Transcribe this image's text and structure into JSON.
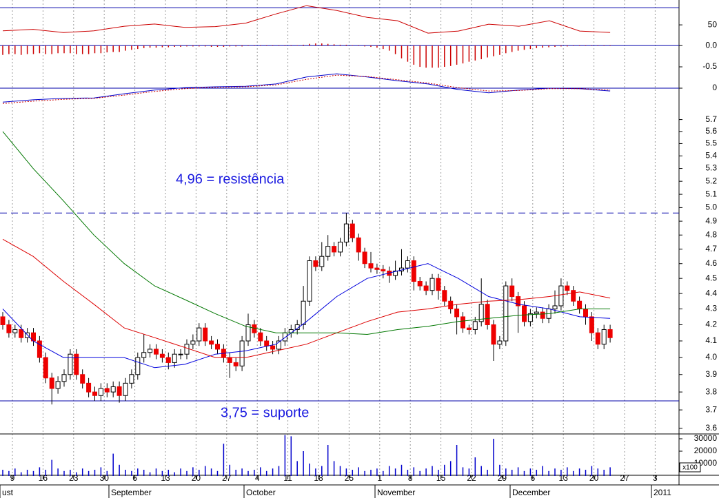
{
  "x_axis": {
    "ticks": [
      "9",
      "16",
      "23",
      "30",
      "6",
      "13",
      "20",
      "27",
      "4",
      "11",
      "18",
      "25",
      "1",
      "8",
      "15",
      "22",
      "29",
      "6",
      "13",
      "20",
      "27",
      "3"
    ],
    "months": [
      "ust",
      "September",
      "October",
      "November",
      "December",
      "2011"
    ]
  },
  "chart_data": [
    {
      "type": "line",
      "name": "rsi",
      "ylim": [
        26,
        79
      ],
      "yticks": [
        50
      ],
      "levels": [
        70
      ],
      "level_color": "#0000aa",
      "series": [
        {
          "color": "#cc0000",
          "values": [
            43,
            44.8,
            41,
            43,
            48.4,
            51,
            47,
            48,
            52,
            62.8,
            72.4,
            66.8,
            58.8,
            54.8,
            40.4,
            42.8,
            50.8,
            48.4,
            54.8,
            42.8,
            41.2
          ]
        }
      ]
    },
    {
      "type": "bar",
      "name": "macd-histogram",
      "ylim": [
        -0.71,
        0.1
      ],
      "yticks": [
        {
          "value": 0,
          "label": "0.0"
        },
        -0.5
      ],
      "levels": [
        0
      ],
      "level_color": "#0000aa",
      "color": "#cc0000",
      "values": [
        -0.22,
        -0.2,
        -0.2,
        -0.22,
        -0.2,
        -0.2,
        -0.18,
        -0.2,
        -0.2,
        -0.18,
        -0.18,
        -0.18,
        -0.2,
        -0.2,
        -0.2,
        -0.18,
        -0.18,
        -0.16,
        -0.15,
        -0.15,
        -0.12,
        -0.1,
        -0.08,
        -0.06,
        -0.05,
        -0.05,
        -0.04,
        -0.04,
        -0.03,
        -0.03,
        -0.02,
        -0.02,
        -0.02,
        -0.02,
        -0.03,
        -0.03,
        -0.03,
        -0.02,
        -0.02,
        -0.02,
        -0.01,
        -0.01,
        -0.01,
        -0.01,
        -0.01,
        -0.01,
        -0.01,
        -0.01,
        0.01,
        0.02,
        0.04,
        0.05,
        0.05,
        0.04,
        0.03,
        0.02,
        0.02,
        0.01,
        -0.01,
        -0.02,
        -0.03,
        -0.05,
        -0.08,
        -0.12,
        -0.2,
        -0.3,
        -0.38,
        -0.45,
        -0.5,
        -0.52,
        -0.52,
        -0.52,
        -0.5,
        -0.48,
        -0.45,
        -0.42,
        -0.38,
        -0.35,
        -0.32,
        -0.28,
        -0.25,
        -0.22,
        -0.18,
        -0.15,
        -0.12,
        -0.1,
        -0.08,
        -0.06,
        -0.05,
        -0.04,
        -0.03,
        -0.02,
        -0.02,
        -0.01,
        -0.01,
        -0.01,
        -0.01,
        -0.01,
        -0.01,
        -0.01
      ]
    },
    {
      "type": "line",
      "name": "macd",
      "ylim": [
        -0.4,
        0.4
      ],
      "yticks": [
        0
      ],
      "levels": [
        0
      ],
      "level_color": "#0000aa",
      "series": [
        {
          "color": "#0000cc",
          "values": [
            -0.3,
            -0.25,
            -0.22,
            -0.21,
            -0.12,
            -0.04,
            0.01,
            0.03,
            0.04,
            0.09,
            0.24,
            0.31,
            0.24,
            0.16,
            0.09,
            -0.03,
            -0.1,
            -0.04,
            0,
            -0.01,
            -0.06
          ]
        },
        {
          "color": "#cc0000",
          "dashed": true,
          "values": [
            -0.33,
            -0.28,
            -0.24,
            -0.22,
            -0.15,
            -0.07,
            -0.01,
            0.02,
            0.03,
            0.07,
            0.19,
            0.28,
            0.25,
            0.18,
            0.11,
            0.01,
            -0.06,
            -0.05,
            -0.01,
            -0.01,
            -0.04
          ]
        }
      ]
    },
    {
      "type": "candlestick",
      "name": "price",
      "log": true,
      "ylim": [
        3.57,
        5.78
      ],
      "yticks": [
        3.6,
        3.7,
        3.8,
        3.9,
        {
          "value": 4.0,
          "label": "4.0"
        },
        4.1,
        4.2,
        4.3,
        4.4,
        4.5,
        4.6,
        4.7,
        4.8,
        4.9,
        {
          "value": 5.0,
          "label": "5.0"
        },
        5.1,
        5.2,
        5.3,
        5.4,
        5.5,
        5.6,
        5.7
      ],
      "up_color": "#ffffff",
      "down_color": "#ee0000",
      "annotations": [
        {
          "text": "4,96 = resistência",
          "value": 4.96,
          "dashed": true
        },
        {
          "text": "3,75 = suporte",
          "value": 3.75
        }
      ],
      "level_color": "#0000aa",
      "ohlc": [
        [
          4.25,
          4.28,
          4.17,
          4.2
        ],
        [
          4.2,
          4.23,
          4.12,
          4.15
        ],
        [
          4.15,
          4.2,
          4.12,
          4.17
        ],
        [
          4.17,
          4.2,
          4.09,
          4.12
        ],
        [
          4.12,
          4.18,
          4.09,
          4.15
        ],
        [
          4.15,
          4.18,
          4.07,
          4.1
        ],
        [
          4.1,
          4.13,
          3.97,
          4
        ],
        [
          4,
          4.03,
          3.85,
          3.88
        ],
        [
          3.88,
          3.91,
          3.73,
          3.82
        ],
        [
          3.82,
          3.89,
          3.79,
          3.86
        ],
        [
          3.86,
          3.93,
          3.83,
          3.9
        ],
        [
          3.9,
          4.05,
          3.87,
          4.02
        ],
        [
          4.02,
          4.05,
          3.87,
          3.9
        ],
        [
          3.9,
          3.93,
          3.82,
          3.85
        ],
        [
          3.85,
          3.88,
          3.77,
          3.8
        ],
        [
          3.8,
          3.83,
          3.75,
          3.78
        ],
        [
          3.78,
          3.85,
          3.75,
          3.82
        ],
        [
          3.82,
          3.85,
          3.77,
          3.8
        ],
        [
          3.8,
          3.86,
          3.77,
          3.83
        ],
        [
          3.83,
          3.86,
          3.74,
          3.78
        ],
        [
          3.78,
          3.88,
          3.75,
          3.85
        ],
        [
          3.85,
          3.93,
          3.82,
          3.9
        ],
        [
          3.9,
          4.03,
          3.87,
          4
        ],
        [
          4,
          4.14,
          3.97,
          4.03
        ],
        [
          4.03,
          4.08,
          4,
          4.05
        ],
        [
          4.05,
          4.08,
          3.99,
          4.02
        ],
        [
          4.02,
          4.05,
          3.97,
          4
        ],
        [
          4,
          4.03,
          3.93,
          3.97
        ],
        [
          3.97,
          4.05,
          3.94,
          4.02
        ],
        [
          4.02,
          4.05,
          3.99,
          4.02
        ],
        [
          4.02,
          4.11,
          3.99,
          4.08
        ],
        [
          4.08,
          4.14,
          4.05,
          4.1
        ],
        [
          4.1,
          4.21,
          4.07,
          4.18
        ],
        [
          4.18,
          4.21,
          4.07,
          4.1
        ],
        [
          4.1,
          4.13,
          4.05,
          4.08
        ],
        [
          4.08,
          4.11,
          4.02,
          4.05
        ],
        [
          4.05,
          4.08,
          3.97,
          4
        ],
        [
          4,
          4.03,
          3.88,
          3.97
        ],
        [
          3.97,
          4,
          3.92,
          3.95
        ],
        [
          3.95,
          4.13,
          3.92,
          4.1
        ],
        [
          4.1,
          4.27,
          4.07,
          4.2
        ],
        [
          4.2,
          4.23,
          4.12,
          4.15
        ],
        [
          4.15,
          4.18,
          4.07,
          4.1
        ],
        [
          4.1,
          4.13,
          4.04,
          4.07
        ],
        [
          4.07,
          4.1,
          4.02,
          4.05
        ],
        [
          4.05,
          4.13,
          4.02,
          4.1
        ],
        [
          4.1,
          4.18,
          4.07,
          4.15
        ],
        [
          4.15,
          4.2,
          4.12,
          4.17
        ],
        [
          4.17,
          4.23,
          4.14,
          4.2
        ],
        [
          4.2,
          4.45,
          4.17,
          4.35
        ],
        [
          4.35,
          4.65,
          4.32,
          4.62
        ],
        [
          4.62,
          4.65,
          4.55,
          4.58
        ],
        [
          4.58,
          4.75,
          4.55,
          4.65
        ],
        [
          4.65,
          4.8,
          4.62,
          4.72
        ],
        [
          4.72,
          4.75,
          4.65,
          4.68
        ],
        [
          4.68,
          4.78,
          4.65,
          4.75
        ],
        [
          4.75,
          4.96,
          4.72,
          4.88
        ],
        [
          4.88,
          4.91,
          4.75,
          4.78
        ],
        [
          4.78,
          4.81,
          4.62,
          4.68
        ],
        [
          4.68,
          4.71,
          4.57,
          4.6
        ],
        [
          4.6,
          4.68,
          4.54,
          4.57
        ],
        [
          4.57,
          4.6,
          4.53,
          4.56
        ],
        [
          4.56,
          4.59,
          4.5,
          4.55
        ],
        [
          4.55,
          4.58,
          4.47,
          4.52
        ],
        [
          4.52,
          4.62,
          4.49,
          4.55
        ],
        [
          4.55,
          4.7,
          4.52,
          4.57
        ],
        [
          4.57,
          4.65,
          4.54,
          4.62
        ],
        [
          4.62,
          4.65,
          4.42,
          4.48
        ],
        [
          4.48,
          4.51,
          4.42,
          4.45
        ],
        [
          4.45,
          4.48,
          4.39,
          4.42
        ],
        [
          4.42,
          4.53,
          4.39,
          4.5
        ],
        [
          4.5,
          4.53,
          4.36,
          4.42
        ],
        [
          4.42,
          4.45,
          4.32,
          4.35
        ],
        [
          4.35,
          4.38,
          4.27,
          4.3
        ],
        [
          4.3,
          4.33,
          4.14,
          4.25
        ],
        [
          4.25,
          4.28,
          4.15,
          4.18
        ],
        [
          4.18,
          4.2,
          4.14,
          4.17
        ],
        [
          4.17,
          4.25,
          4.14,
          4.22
        ],
        [
          4.22,
          4.5,
          4.19,
          4.33
        ],
        [
          4.33,
          4.36,
          4.17,
          4.2
        ],
        [
          4.2,
          4.23,
          3.98,
          4.08
        ],
        [
          4.08,
          4.13,
          4.05,
          4.1
        ],
        [
          4.1,
          4.48,
          4.07,
          4.45
        ],
        [
          4.45,
          4.5,
          4.35,
          4.38
        ],
        [
          4.38,
          4.41,
          4.15,
          4.32
        ],
        [
          4.32,
          4.35,
          4.19,
          4.22
        ],
        [
          4.22,
          4.3,
          4.19,
          4.27
        ],
        [
          4.27,
          4.31,
          4.24,
          4.28
        ],
        [
          4.28,
          4.31,
          4.21,
          4.24
        ],
        [
          4.24,
          4.33,
          4.21,
          4.3
        ],
        [
          4.3,
          4.42,
          4.27,
          4.32
        ],
        [
          4.32,
          4.5,
          4.29,
          4.45
        ],
        [
          4.45,
          4.48,
          4.39,
          4.42
        ],
        [
          4.42,
          4.45,
          4.32,
          4.35
        ],
        [
          4.35,
          4.38,
          4.27,
          4.3
        ],
        [
          4.3,
          4.33,
          4.2,
          4.25
        ],
        [
          4.25,
          4.28,
          4.1,
          4.15
        ],
        [
          4.15,
          4.18,
          4.05,
          4.08
        ],
        [
          4.08,
          4.2,
          4.05,
          4.17
        ],
        [
          4.17,
          4.2,
          4.09,
          4.12
        ]
      ],
      "series": [
        {
          "color": "#0000dd",
          "values": [
            4.3,
            4.1,
            4,
            4,
            4,
            3.94,
            3.96,
            4.02,
            4.04,
            4.08,
            4.22,
            4.38,
            4.5,
            4.55,
            4.6,
            4.5,
            4.38,
            4.33,
            4.3,
            4.25,
            4.24
          ]
        },
        {
          "color": "#dd0000",
          "values": [
            4.77,
            4.65,
            4.48,
            4.33,
            4.18,
            4.12,
            4.06,
            4,
            4,
            4.04,
            4.08,
            4.15,
            4.22,
            4.28,
            4.3,
            4.33,
            4.35,
            4.36,
            4.38,
            4.41,
            4.37
          ]
        },
        {
          "color": "#007700",
          "values": [
            5.6,
            5.3,
            5.05,
            4.8,
            4.6,
            4.45,
            4.36,
            4.27,
            4.19,
            4.15,
            4.15,
            4.15,
            4.14,
            4.17,
            4.19,
            4.22,
            4.24,
            4.26,
            4.27,
            4.3,
            4.3
          ]
        }
      ]
    },
    {
      "type": "bar",
      "name": "volume",
      "ylim": [
        0,
        35000
      ],
      "yticks": [
        30000,
        20000,
        10000
      ],
      "color": "#0000cc",
      "multiplier_label": "x100",
      "values": [
        5000,
        4000,
        6000,
        3000,
        5000,
        4000,
        7000,
        5000,
        13000,
        6000,
        4000,
        5000,
        3000,
        6000,
        4000,
        5000,
        7000,
        4000,
        18000,
        9000,
        5000,
        4000,
        6000,
        5000,
        3000,
        6000,
        4000,
        5000,
        3000,
        6000,
        4000,
        7000,
        5000,
        8000,
        6000,
        4000,
        26000,
        9000,
        5000,
        6000,
        4000,
        5000,
        7000,
        4000,
        6000,
        8000,
        33000,
        32000,
        12000,
        20000,
        10000,
        6000,
        8000,
        25000,
        12000,
        8000,
        6000,
        5000,
        7000,
        4000,
        5000,
        6000,
        4000,
        8000,
        6000,
        9000,
        5000,
        7000,
        4000,
        6000,
        8000,
        5000,
        9000,
        12000,
        25000,
        7000,
        6000,
        15000,
        8000,
        5000,
        30000,
        9000,
        6000,
        5000,
        7000,
        4000,
        6000,
        5000,
        8000,
        4000,
        6000,
        5000,
        7000,
        4000,
        6000,
        5000,
        8000,
        6000,
        5000,
        7000
      ]
    }
  ]
}
